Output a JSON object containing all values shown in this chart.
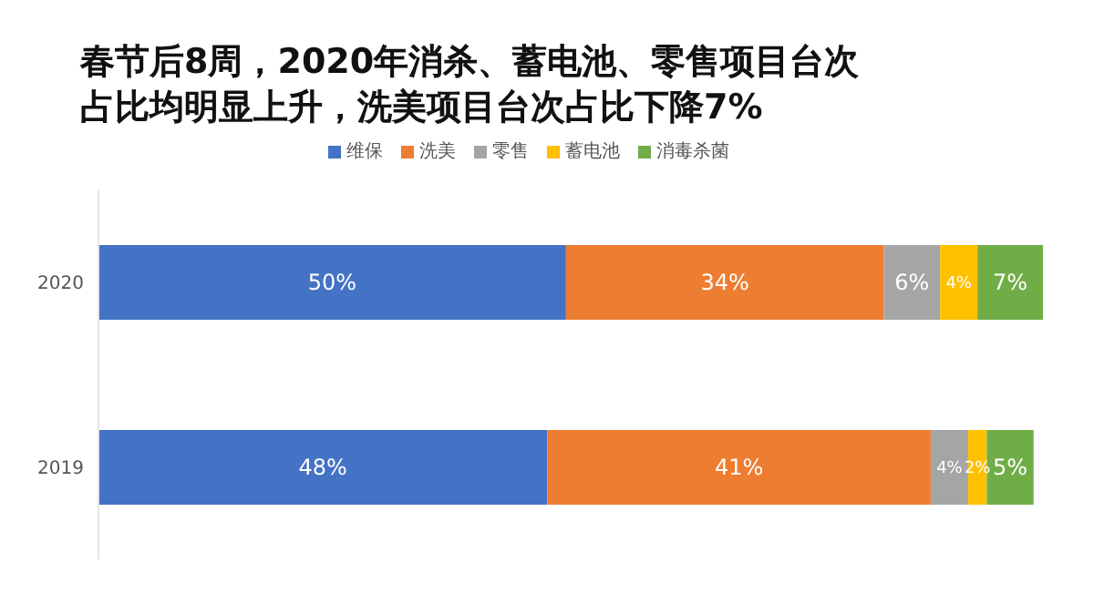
{
  "chart_data": {
    "type": "bar",
    "orientation": "horizontal",
    "stacked": true,
    "title": "春节后8周，2020年消杀、蓄电池、零售项目台次占比均明显上升，洗美项目台次占比下降7%",
    "categories": [
      "2020",
      "2019"
    ],
    "legend": "top",
    "series": [
      {
        "name": "维保",
        "color": "#4472c4",
        "values": [
          50,
          48
        ],
        "value_labels": [
          "50%",
          "48%"
        ]
      },
      {
        "name": "洗美",
        "color": "#ed7d31",
        "values": [
          34,
          41
        ],
        "value_labels": [
          "34%",
          "41%"
        ]
      },
      {
        "name": "零售",
        "color": "#a5a5a5",
        "values": [
          6,
          4
        ],
        "value_labels": [
          "6%",
          "4%"
        ]
      },
      {
        "name": "蓄电池",
        "color": "#ffc000",
        "values": [
          4,
          2
        ],
        "value_labels": [
          "4%",
          "2%"
        ]
      },
      {
        "name": "消毒杀菌",
        "color": "#70ad47",
        "values": [
          7,
          5
        ],
        "value_labels": [
          "7%",
          "5%"
        ]
      }
    ]
  }
}
